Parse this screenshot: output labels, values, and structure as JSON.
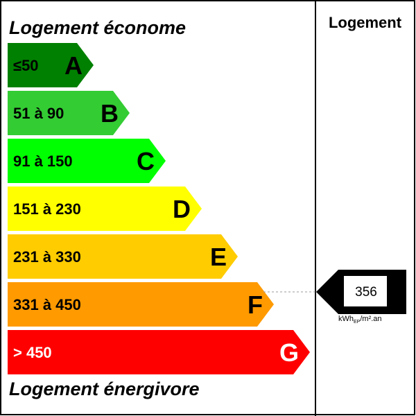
{
  "header": {
    "top_label": "Logement économe",
    "bottom_label": "Logement énergivore",
    "column_title": "Logement"
  },
  "bands": [
    {
      "range": "≤50",
      "letter": "A",
      "color": "#008000"
    },
    {
      "range": "51 à 90",
      "letter": "B",
      "color": "#33cc33"
    },
    {
      "range": "91 à 150",
      "letter": "C",
      "color": "#00ff00"
    },
    {
      "range": "151 à 230",
      "letter": "D",
      "color": "#ffff00"
    },
    {
      "range": "231 à 330",
      "letter": "E",
      "color": "#ffcc00"
    },
    {
      "range": "331 à 450",
      "letter": "F",
      "color": "#ff9a00"
    },
    {
      "range": "> 450",
      "letter": "G",
      "color": "#ff0000"
    }
  ],
  "indicator": {
    "value": "356",
    "band": "F",
    "unit_main": "kWh",
    "unit_sub": "EP",
    "unit_rest": "/m².an"
  }
}
